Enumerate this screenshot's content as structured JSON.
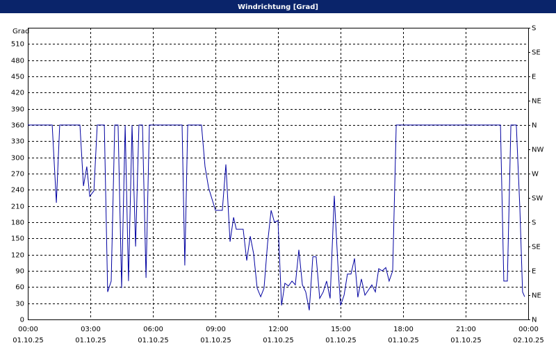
{
  "chart_data": {
    "type": "line",
    "title": "Windrichtung [Grad]",
    "y_label": "Grad",
    "color": "#0000a0",
    "grid": true,
    "xlim": [
      0,
      24
    ],
    "ylim": [
      0,
      540
    ],
    "y2lim": [
      0,
      540
    ],
    "xticks": [
      {
        "value": 0,
        "label": "00:00",
        "date": "01.10.25"
      },
      {
        "value": 3,
        "label": "03:00",
        "date": "01.10.25"
      },
      {
        "value": 6,
        "label": "06:00",
        "date": "01.10.25"
      },
      {
        "value": 9,
        "label": "09:00",
        "date": "01.10.25"
      },
      {
        "value": 12,
        "label": "12:00",
        "date": "01.10.25"
      },
      {
        "value": 15,
        "label": "15:00",
        "date": "01.10.25"
      },
      {
        "value": 18,
        "label": "18:00",
        "date": "01.10.25"
      },
      {
        "value": 21,
        "label": "21:00",
        "date": "01.10.25"
      },
      {
        "value": 24,
        "label": "00:00",
        "date": "02.10.25"
      }
    ],
    "yticks": [
      0,
      30,
      60,
      90,
      120,
      150,
      180,
      210,
      240,
      270,
      300,
      330,
      360,
      390,
      420,
      450,
      480,
      510
    ],
    "y2ticks": [
      {
        "value": 0,
        "label": "N"
      },
      {
        "value": 45,
        "label": "NE"
      },
      {
        "value": 90,
        "label": "E"
      },
      {
        "value": 135,
        "label": "SE"
      },
      {
        "value": 180,
        "label": "S"
      },
      {
        "value": 225,
        "label": "SW"
      },
      {
        "value": 270,
        "label": "W"
      },
      {
        "value": 315,
        "label": "NW"
      },
      {
        "value": 360,
        "label": "N"
      },
      {
        "value": 405,
        "label": "NE"
      },
      {
        "value": 450,
        "label": "E"
      },
      {
        "value": 495,
        "label": "SE"
      },
      {
        "value": 540,
        "label": "S"
      }
    ],
    "x": [
      0,
      1.17,
      1.37,
      1.53,
      2.5,
      2.67,
      2.83,
      2.97,
      3.17,
      3.33,
      3.67,
      3.83,
      4.0,
      4.17,
      4.33,
      4.5,
      4.67,
      4.83,
      5.0,
      5.17,
      5.33,
      5.5,
      5.67,
      5.83,
      7.4,
      7.53,
      7.67,
      8.33,
      8.5,
      8.67,
      9.0,
      9.33,
      9.5,
      9.7,
      9.87,
      10.0,
      10.33,
      10.5,
      10.67,
      10.83,
      11.0,
      11.17,
      11.33,
      11.5,
      11.67,
      11.83,
      12.0,
      12.17,
      12.33,
      12.5,
      12.67,
      12.83,
      13.0,
      13.17,
      13.33,
      13.5,
      13.67,
      13.83,
      14.0,
      14.17,
      14.33,
      14.5,
      14.7,
      14.87,
      15.0,
      15.17,
      15.33,
      15.5,
      15.67,
      15.83,
      16.0,
      16.17,
      16.33,
      16.5,
      16.67,
      16.83,
      17.0,
      17.17,
      17.33,
      17.5,
      17.67,
      22.67,
      22.83,
      23.0,
      23.17,
      23.43,
      23.6,
      23.73,
      23.83
    ],
    "values": [
      360,
      360,
      216,
      360,
      360,
      247,
      283,
      228,
      238,
      360,
      360,
      51,
      71,
      360,
      360,
      58,
      360,
      71,
      360,
      135,
      360,
      360,
      77,
      360,
      360,
      100,
      360,
      360,
      283,
      244,
      202,
      202,
      287,
      144,
      189,
      167,
      167,
      109,
      154,
      122,
      58,
      42,
      58,
      141,
      202,
      180,
      183,
      26,
      67,
      62,
      71,
      64,
      129,
      64,
      51,
      17,
      116,
      116,
      39,
      51,
      71,
      39,
      229,
      103,
      26,
      45,
      84,
      84,
      113,
      41,
      75,
      45,
      54,
      64,
      51,
      94,
      90,
      96,
      71,
      90,
      360,
      360,
      71,
      71,
      360,
      360,
      206,
      51,
      42
    ]
  }
}
